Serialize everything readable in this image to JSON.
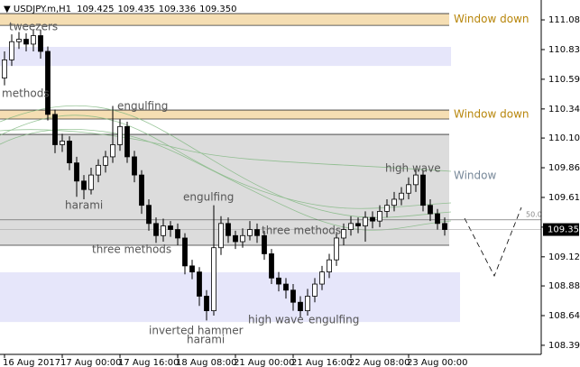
{
  "header": {
    "symbol": "USDJPY.m,H1",
    "quote": [
      "109.425",
      "109.435",
      "109.336",
      "109.350"
    ]
  },
  "chart_data": {
    "type": "candlestick",
    "categories": [
      "16 Aug 2017",
      null,
      null,
      null,
      null,
      null,
      null,
      null,
      "17 Aug 00:00",
      null,
      null,
      null,
      null,
      null,
      null,
      null,
      "17 Aug 16:00",
      null,
      null,
      null,
      null,
      null,
      null,
      null,
      "18 Aug 08:00",
      null,
      null,
      null,
      null,
      null,
      null,
      null,
      "21 Aug 00:00",
      null,
      null,
      null,
      null,
      null,
      null,
      null,
      "21 Aug 16:00",
      null,
      null,
      null,
      null,
      null,
      null,
      null,
      "22 Aug 08:00",
      null,
      null,
      null,
      null,
      null,
      null,
      null,
      "23 Aug 00:00",
      null,
      null,
      null,
      null,
      null
    ],
    "open": [
      110.6,
      110.75,
      110.9,
      110.92,
      110.88,
      110.95,
      110.82,
      110.3,
      110.05,
      110.08,
      109.9,
      109.75,
      109.68,
      109.8,
      109.88,
      109.95,
      110.05,
      110.2,
      109.95,
      109.8,
      109.55,
      109.4,
      109.3,
      109.38,
      109.35,
      109.28,
      109.05,
      109.0,
      108.8,
      108.68,
      109.2,
      109.4,
      109.3,
      109.25,
      109.3,
      109.35,
      109.3,
      109.15,
      108.95,
      108.9,
      108.85,
      108.75,
      108.68,
      108.8,
      108.9,
      109.0,
      109.1,
      109.28,
      109.35,
      109.4,
      109.38,
      109.45,
      109.42,
      109.5,
      109.55,
      109.6,
      109.65,
      109.72,
      109.8,
      109.55,
      109.48,
      109.4
    ],
    "high": [
      110.82,
      110.96,
      110.98,
      110.97,
      111.0,
      111.0,
      110.86,
      110.34,
      110.14,
      110.12,
      109.95,
      109.8,
      109.86,
      109.93,
      110.0,
      110.37,
      110.26,
      110.24,
      110.0,
      109.84,
      109.6,
      109.45,
      109.44,
      109.42,
      109.4,
      109.32,
      109.1,
      109.04,
      108.85,
      109.55,
      109.46,
      109.45,
      109.34,
      109.36,
      109.42,
      109.4,
      109.34,
      109.19,
      109.0,
      108.95,
      108.9,
      108.8,
      108.86,
      108.95,
      109.05,
      109.15,
      109.33,
      109.4,
      109.46,
      109.45,
      109.5,
      109.5,
      109.55,
      109.6,
      109.66,
      109.7,
      109.78,
      109.86,
      109.84,
      109.6,
      109.52,
      109.45
    ],
    "low": [
      110.54,
      110.7,
      110.84,
      110.82,
      110.82,
      110.76,
      110.25,
      109.98,
      109.99,
      109.84,
      109.62,
      109.6,
      109.64,
      109.74,
      109.82,
      109.9,
      110.0,
      109.9,
      109.74,
      109.48,
      109.34,
      109.24,
      109.25,
      109.29,
      109.22,
      108.98,
      108.94,
      108.72,
      108.6,
      108.64,
      109.14,
      109.24,
      109.19,
      109.2,
      109.26,
      109.24,
      109.1,
      108.9,
      108.84,
      108.78,
      108.68,
      108.62,
      108.64,
      108.75,
      108.85,
      108.95,
      109.05,
      109.22,
      109.3,
      109.32,
      109.25,
      109.36,
      109.37,
      109.45,
      109.5,
      109.55,
      109.6,
      109.66,
      109.5,
      109.42,
      109.35,
      109.3
    ],
    "close": [
      110.75,
      110.9,
      110.92,
      110.88,
      110.95,
      110.82,
      110.3,
      110.05,
      110.08,
      109.9,
      109.75,
      109.68,
      109.8,
      109.88,
      109.95,
      110.05,
      110.2,
      109.95,
      109.8,
      109.55,
      109.4,
      109.3,
      109.38,
      109.35,
      109.28,
      109.05,
      109.0,
      108.8,
      108.68,
      109.2,
      109.4,
      109.3,
      109.25,
      109.3,
      109.35,
      109.3,
      109.15,
      108.95,
      108.9,
      108.85,
      108.75,
      108.68,
      108.8,
      108.9,
      109.0,
      109.1,
      109.28,
      109.35,
      109.4,
      109.38,
      109.45,
      109.42,
      109.5,
      109.55,
      109.6,
      109.65,
      109.72,
      109.8,
      109.55,
      109.48,
      109.4,
      109.35
    ],
    "ylim": [
      108.32,
      111.244
    ],
    "yticks": [
      {
        "value": 111.08,
        "label": "111.080"
      },
      {
        "value": 110.835,
        "label": "110.835"
      },
      {
        "value": 110.59,
        "label": "110.590"
      },
      {
        "value": 110.345,
        "label": "110.345"
      },
      {
        "value": 110.105,
        "label": "110.105"
      },
      {
        "value": 109.86,
        "label": "109.860"
      },
      {
        "value": 109.615,
        "label": "109.615"
      },
      {
        "value": 109.37,
        "label": "109.370"
      },
      {
        "value": 109.125,
        "label": "109.125"
      },
      {
        "value": 108.885,
        "label": "108.885"
      },
      {
        "value": 108.64,
        "label": "108.640"
      },
      {
        "value": 108.395,
        "label": "108.395"
      }
    ],
    "last_price": {
      "value": 109.35,
      "label": "109.350"
    },
    "level": {
      "value": 109.43,
      "label": "50.0"
    },
    "zones": [
      {
        "low": 111.035,
        "high": 111.132,
        "color": "#f5deb3",
        "label": "Window down",
        "label_color": "#b8860b"
      },
      {
        "low": 110.7,
        "high": 110.857,
        "color": "#e6e6fa"
      },
      {
        "low": 110.262,
        "high": 110.336,
        "color": "#f5deb3",
        "label": "Window down",
        "label_color": "#b8860b"
      },
      {
        "low": 109.22,
        "high": 110.135,
        "color": "#dcdcdc",
        "label": "Window",
        "label_color": "#778899"
      },
      {
        "low": 108.587,
        "high": 108.997,
        "color": "#e6e6fa"
      }
    ],
    "annotations": [
      "tweezers",
      "methods",
      "harami",
      "engulfing",
      "engulfing",
      "three methods",
      "three methods",
      "inverted hammer",
      "harami",
      "high wave",
      "engulfing",
      "high wave"
    ]
  }
}
